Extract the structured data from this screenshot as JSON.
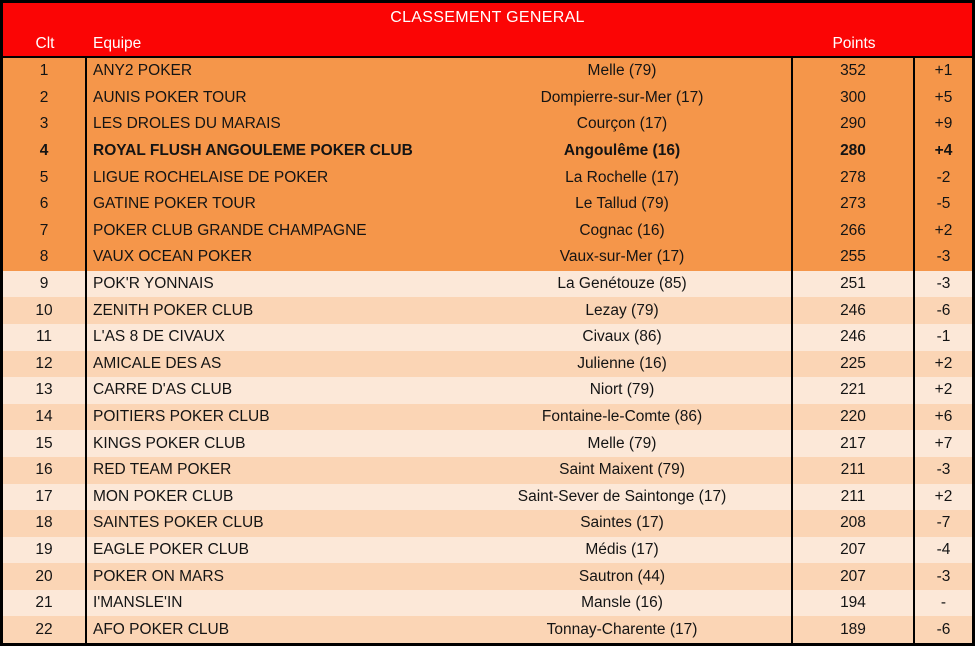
{
  "header": {
    "title": "CLASSEMENT GENERAL",
    "columns": {
      "rank": "Clt",
      "team": "Equipe",
      "points": "Points"
    }
  },
  "colors": {
    "header_bg": "#FB0505",
    "header_text": "#FFFFFF",
    "top_band": "#F5964A",
    "alt_band_light": "#FCE8D8",
    "alt_band_mid": "#FBD5B5",
    "border": "#000000"
  },
  "rows": [
    {
      "rank": "1",
      "team": "ANY2 POKER",
      "city": "Melle (79)",
      "points": "352",
      "change": "+1",
      "highlight": false
    },
    {
      "rank": "2",
      "team": "AUNIS POKER TOUR",
      "city": "Dompierre-sur-Mer (17)",
      "points": "300",
      "change": "+5",
      "highlight": false
    },
    {
      "rank": "3",
      "team": "LES DROLES DU MARAIS",
      "city": "Courçon (17)",
      "points": "290",
      "change": "+9",
      "highlight": false
    },
    {
      "rank": "4",
      "team": "ROYAL FLUSH ANGOULEME POKER CLUB",
      "city": "Angoulême (16)",
      "points": "280",
      "change": "+4",
      "highlight": true
    },
    {
      "rank": "5",
      "team": "LIGUE ROCHELAISE DE POKER",
      "city": "La Rochelle (17)",
      "points": "278",
      "change": "-2",
      "highlight": false
    },
    {
      "rank": "6",
      "team": "GATINE POKER TOUR",
      "city": "Le Tallud (79)",
      "points": "273",
      "change": "-5",
      "highlight": false
    },
    {
      "rank": "7",
      "team": "POKER CLUB GRANDE CHAMPAGNE",
      "city": "Cognac (16)",
      "points": "266",
      "change": "+2",
      "highlight": false
    },
    {
      "rank": "8",
      "team": "VAUX OCEAN POKER",
      "city": "Vaux-sur-Mer (17)",
      "points": "255",
      "change": "-3",
      "highlight": false
    },
    {
      "rank": "9",
      "team": "POK'R YONNAIS",
      "city": "La Genétouze (85)",
      "points": "251",
      "change": "-3",
      "highlight": false
    },
    {
      "rank": "10",
      "team": "ZENITH POKER CLUB",
      "city": "Lezay (79)",
      "points": "246",
      "change": "-6",
      "highlight": false
    },
    {
      "rank": "11",
      "team": "L'AS 8 DE CIVAUX",
      "city": "Civaux (86)",
      "points": "246",
      "change": "-1",
      "highlight": false
    },
    {
      "rank": "12",
      "team": "AMICALE DES AS",
      "city": "Julienne (16)",
      "points": "225",
      "change": "+2",
      "highlight": false
    },
    {
      "rank": "13",
      "team": "CARRE D'AS CLUB",
      "city": "Niort (79)",
      "points": "221",
      "change": "+2",
      "highlight": false
    },
    {
      "rank": "14",
      "team": "POITIERS POKER CLUB",
      "city": "Fontaine-le-Comte (86)",
      "points": "220",
      "change": "+6",
      "highlight": false
    },
    {
      "rank": "15",
      "team": "KINGS POKER CLUB",
      "city": "Melle (79)",
      "points": "217",
      "change": "+7",
      "highlight": false
    },
    {
      "rank": "16",
      "team": "RED TEAM POKER",
      "city": "Saint Maixent (79)",
      "points": "211",
      "change": "-3",
      "highlight": false
    },
    {
      "rank": "17",
      "team": "MON POKER CLUB",
      "city": "Saint-Sever de Saintonge (17)",
      "points": "211",
      "change": "+2",
      "highlight": false
    },
    {
      "rank": "18",
      "team": "SAINTES POKER CLUB",
      "city": "Saintes (17)",
      "points": "208",
      "change": "-7",
      "highlight": false
    },
    {
      "rank": "19",
      "team": "EAGLE POKER CLUB",
      "city": "Médis (17)",
      "points": "207",
      "change": "-4",
      "highlight": false
    },
    {
      "rank": "20",
      "team": "POKER ON MARS",
      "city": "Sautron (44)",
      "points": "207",
      "change": "-3",
      "highlight": false
    },
    {
      "rank": "21",
      "team": "I'MANSLE'IN",
      "city": "Mansle (16)",
      "points": "194",
      "change": "-",
      "highlight": false
    },
    {
      "rank": "22",
      "team": "AFO POKER CLUB",
      "city": "Tonnay-Charente (17)",
      "points": "189",
      "change": "-6",
      "highlight": false
    }
  ]
}
